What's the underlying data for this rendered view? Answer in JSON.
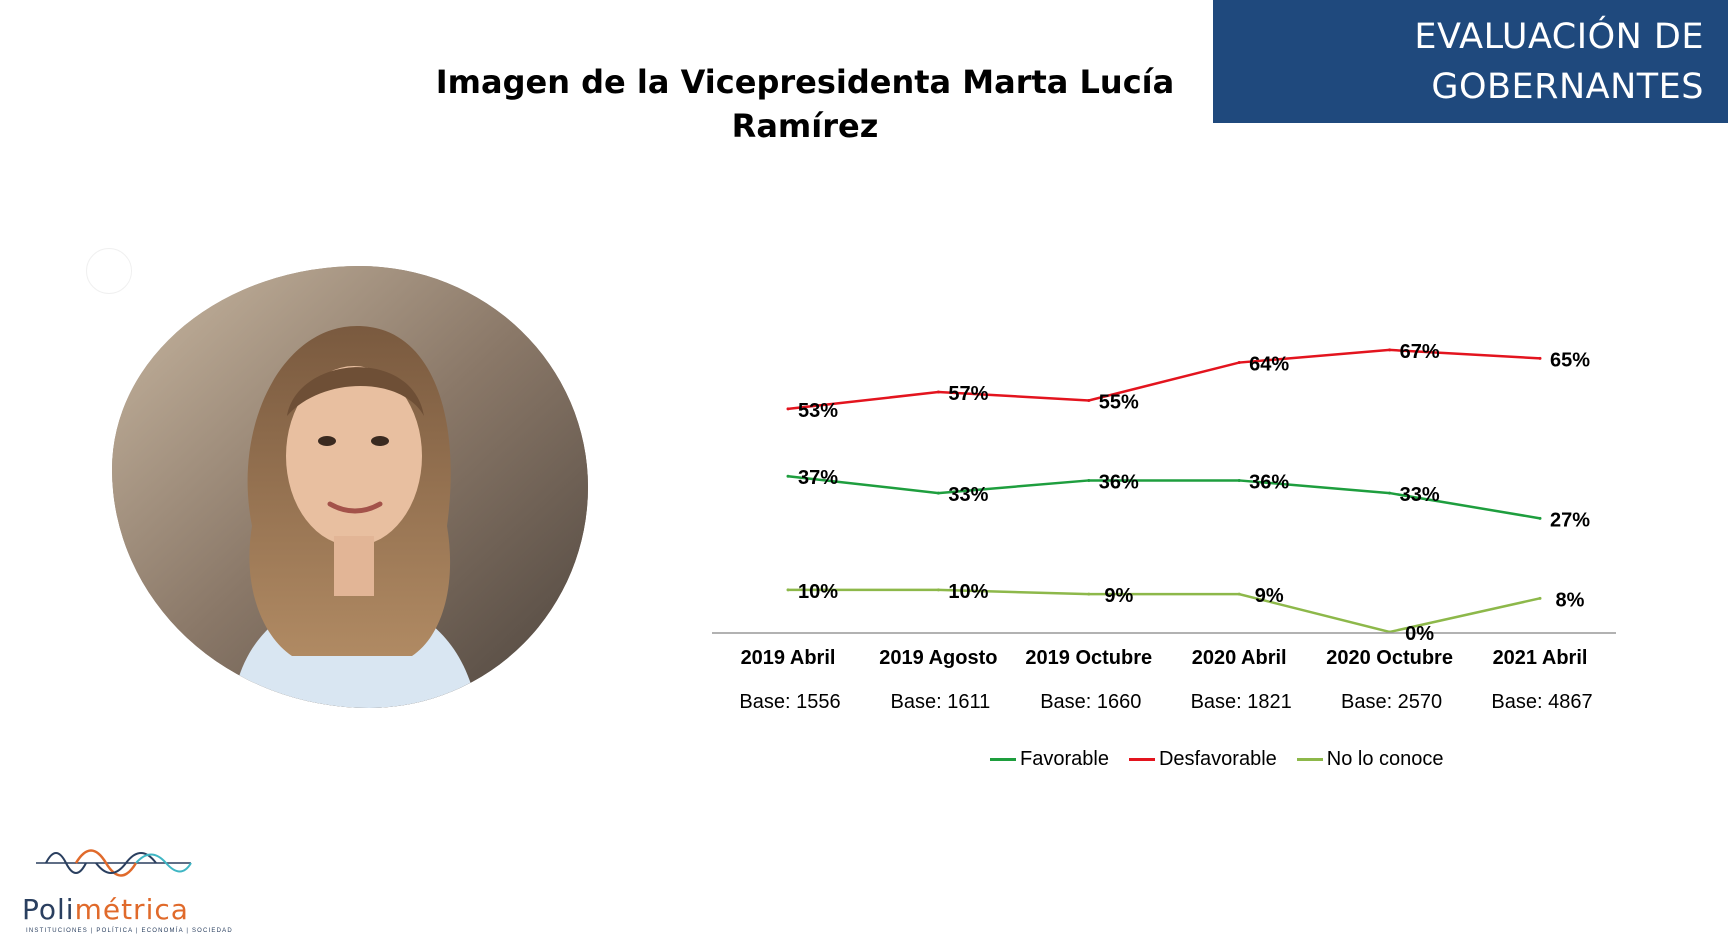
{
  "header": {
    "banner_line1": "EVALUACIÓN DE",
    "banner_line2": "GOBERNANTES",
    "banner_color": "#1f497d"
  },
  "chart_data": {
    "type": "line",
    "title": "Imagen de la Vicepresidenta Marta Lucía Ramírez",
    "categories": [
      "2019 Abril",
      "2019 Agosto",
      "2019 Octubre",
      "2020 Abril",
      "2020 Octubre",
      "2021 Abril"
    ],
    "bases": [
      "Base: 1556",
      "Base: 1611",
      "Base: 1660",
      "Base: 1821",
      "Base: 2570",
      "Base: 4867"
    ],
    "series": [
      {
        "name": "Favorable",
        "values": [
          37,
          33,
          36,
          36,
          33,
          27
        ],
        "labels": [
          "37%",
          "33%",
          "36%",
          "36%",
          "33%",
          "27%"
        ],
        "color": "#1e9e3e"
      },
      {
        "name": "Desfavorable",
        "values": [
          53,
          57,
          55,
          64,
          67,
          65
        ],
        "labels": [
          "53%",
          "57%",
          "55%",
          "64%",
          "67%",
          "65%"
        ],
        "color": "#e3141e"
      },
      {
        "name": "No lo conoce",
        "values": [
          10,
          10,
          9,
          9,
          0,
          8
        ],
        "labels": [
          "10%",
          "10%",
          "9%",
          "9%",
          "0%",
          "8%"
        ],
        "color": "#8db84a"
      }
    ],
    "ylim": [
      0,
      70
    ],
    "grid": false,
    "legend_position": "bottom"
  },
  "logo": {
    "name_part1": "Poli",
    "name_part2": "métrica",
    "tagline": "INSTITUCIONES | POLÍTICA | ECONOMÍA | SOCIEDAD",
    "icon": "waveform-logo-icon"
  },
  "photo": {
    "icon": "portrait-photo"
  }
}
